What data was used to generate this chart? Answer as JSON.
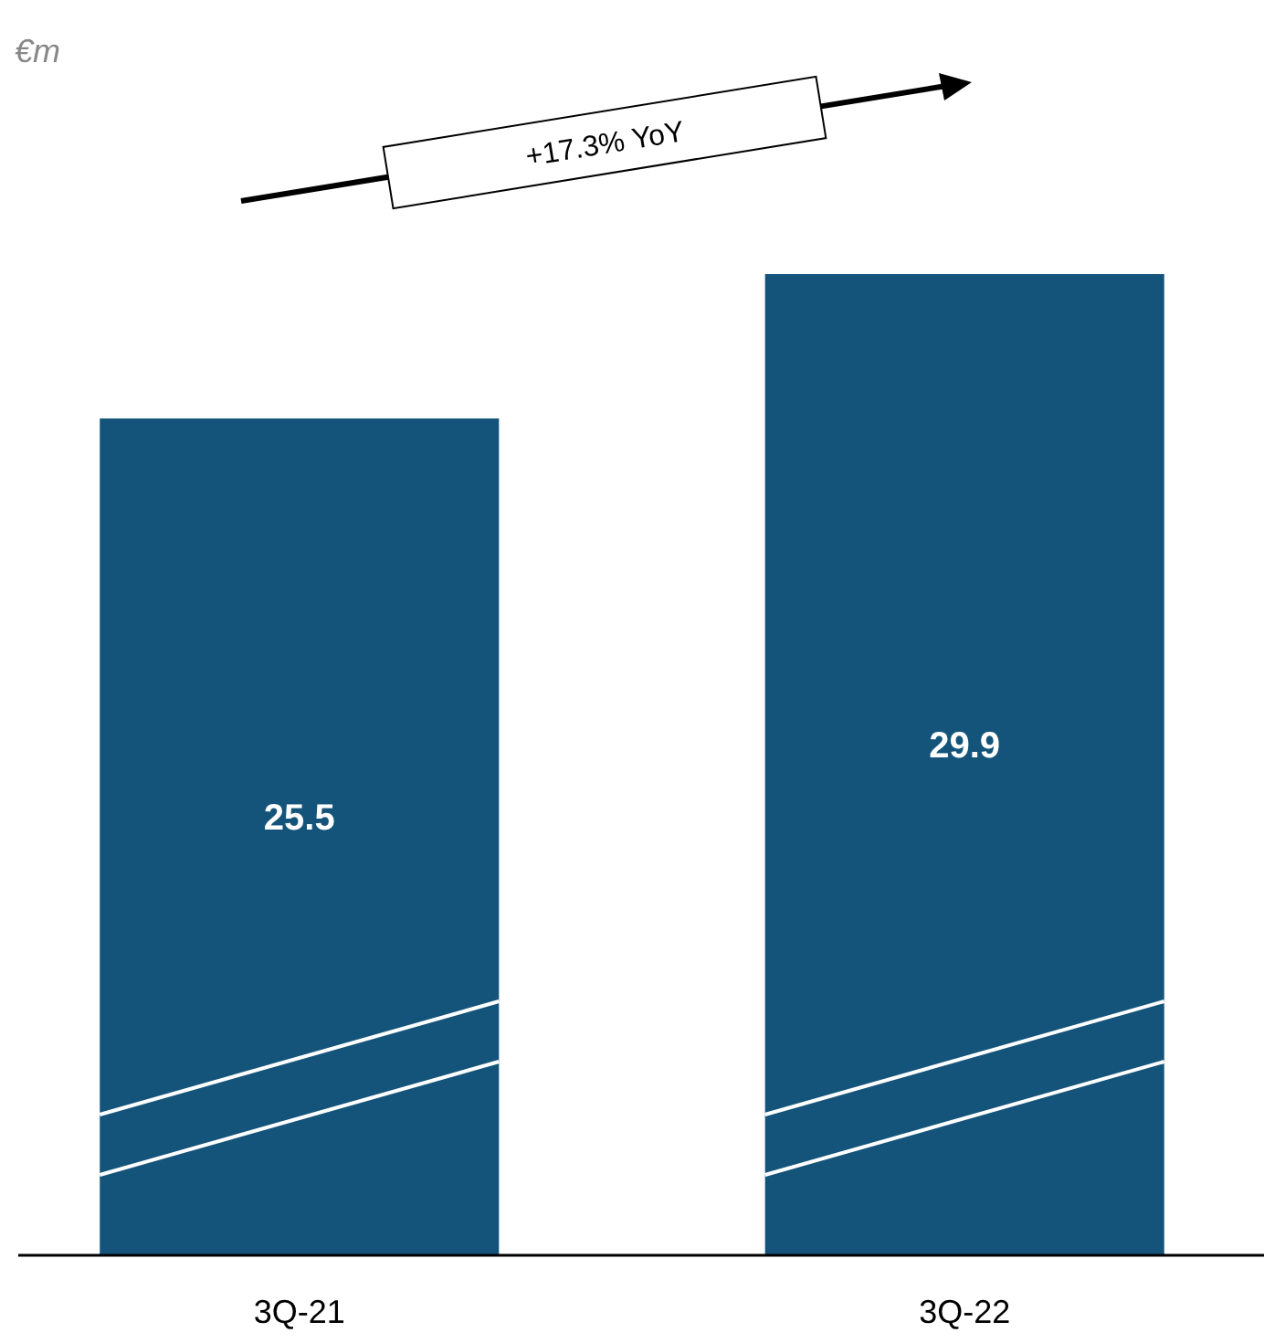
{
  "chart_data": {
    "type": "bar",
    "categories": [
      "3Q-21",
      "3Q-22"
    ],
    "values": [
      25.5,
      29.9
    ],
    "color": "#15547a",
    "data_labels": true,
    "annotations": [
      "€m",
      "+17.3% YoY"
    ]
  }
}
